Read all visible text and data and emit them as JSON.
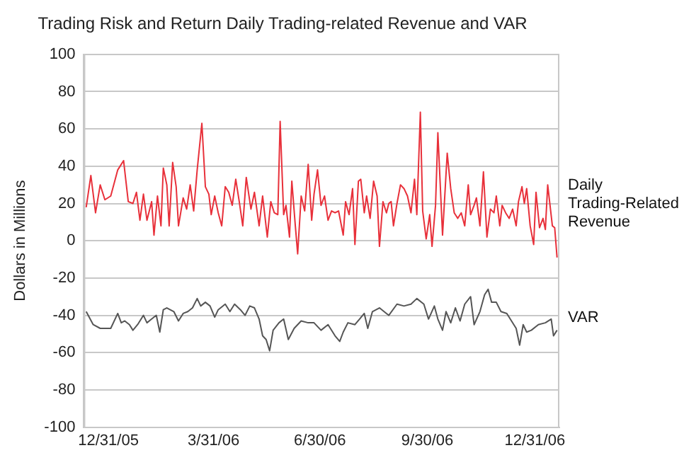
{
  "chart_data": {
    "type": "line",
    "title": "Trading Risk and Return Daily Trading-related Revenue and VAR",
    "ylabel": "Dollars in Millions",
    "xlim": [
      "2005-12-10",
      "2007-01-21"
    ],
    "xticks": [
      {
        "value": "2005-12-31",
        "label": "12/31/05"
      },
      {
        "value": "2006-03-31",
        "label": "3/31/06"
      },
      {
        "value": "2006-06-30",
        "label": "6/30/06"
      },
      {
        "value": "2006-09-30",
        "label": "9/30/06"
      },
      {
        "value": "2006-12-31",
        "label": "12/31/06"
      }
    ],
    "ylim": [
      -100,
      100
    ],
    "yticks": [
      -100,
      -80,
      -60,
      -40,
      -20,
      0,
      20,
      40,
      60,
      80,
      100
    ],
    "grid": "y",
    "legend": false,
    "marker": "none",
    "line_style": "solid",
    "series": [
      {
        "name": "Daily Trading-Related Revenue",
        "color": "#e8303a",
        "x": [
          "2005-12-12",
          "2005-12-16",
          "2005-12-20",
          "2005-12-24",
          "2005-12-28",
          "2006-01-02",
          "2006-01-08",
          "2006-01-13",
          "2006-01-17",
          "2006-01-21",
          "2006-01-24",
          "2006-01-27",
          "2006-01-30",
          "2006-02-02",
          "2006-02-06",
          "2006-02-08",
          "2006-02-11",
          "2006-02-14",
          "2006-02-16",
          "2006-02-19",
          "2006-02-21",
          "2006-02-24",
          "2006-02-27",
          "2006-03-01",
          "2006-03-05",
          "2006-03-08",
          "2006-03-11",
          "2006-03-14",
          "2006-03-17",
          "2006-03-21",
          "2006-03-24",
          "2006-03-27",
          "2006-03-29",
          "2006-04-01",
          "2006-04-04",
          "2006-04-07",
          "2006-04-10",
          "2006-04-13",
          "2006-04-16",
          "2006-04-19",
          "2006-04-22",
          "2006-04-25",
          "2006-04-28",
          "2006-05-02",
          "2006-05-05",
          "2006-05-09",
          "2006-05-12",
          "2006-05-16",
          "2006-05-19",
          "2006-05-22",
          "2006-05-25",
          "2006-05-27",
          "2006-05-30",
          "2006-06-01",
          "2006-06-04",
          "2006-06-06",
          "2006-06-09",
          "2006-06-11",
          "2006-06-14",
          "2006-06-17",
          "2006-06-20",
          "2006-06-23",
          "2006-06-25",
          "2006-06-28",
          "2006-07-01",
          "2006-07-04",
          "2006-07-07",
          "2006-07-10",
          "2006-07-13",
          "2006-07-16",
          "2006-07-20",
          "2006-07-22",
          "2006-07-25",
          "2006-07-28",
          "2006-07-30",
          "2006-08-02",
          "2006-08-04",
          "2006-08-07",
          "2006-08-09",
          "2006-08-12",
          "2006-08-15",
          "2006-08-18",
          "2006-08-20",
          "2006-08-23",
          "2006-08-26",
          "2006-08-28",
          "2006-08-30",
          "2006-09-01",
          "2006-09-04",
          "2006-09-07",
          "2006-09-10",
          "2006-09-13",
          "2006-09-16",
          "2006-09-19",
          "2006-09-21",
          "2006-09-24",
          "2006-09-26",
          "2006-09-29",
          "2006-10-02",
          "2006-10-04",
          "2006-10-07",
          "2006-10-09",
          "2006-10-13",
          "2006-10-14",
          "2006-10-17",
          "2006-10-20",
          "2006-10-23",
          "2006-10-26",
          "2006-10-29",
          "2006-11-01",
          "2006-11-04",
          "2006-11-06",
          "2006-11-09",
          "2006-11-11",
          "2006-11-14",
          "2006-11-17",
          "2006-11-20",
          "2006-11-23",
          "2006-11-26",
          "2006-11-28",
          "2006-12-01",
          "2006-12-03",
          "2006-12-06",
          "2006-12-09",
          "2006-12-12",
          "2006-12-15",
          "2006-12-17",
          "2006-12-20",
          "2006-12-22",
          "2006-12-24",
          "2006-12-27",
          "2006-12-30",
          "2007-01-01",
          "2007-01-04",
          "2007-01-07",
          "2007-01-09",
          "2007-01-11",
          "2007-01-13",
          "2007-01-15",
          "2007-01-17",
          "2007-01-19"
        ],
        "values": [
          18,
          35,
          15,
          30,
          22,
          24,
          38,
          43,
          21,
          20,
          26,
          11,
          25,
          11,
          21,
          3,
          24,
          8,
          39,
          30,
          8,
          42,
          29,
          8,
          23,
          17,
          30,
          16,
          38,
          63,
          29,
          25,
          14,
          24,
          15,
          8,
          29,
          26,
          19,
          33,
          21,
          8,
          34,
          17,
          26,
          8,
          24,
          2,
          21,
          15,
          14,
          64,
          14,
          19,
          2,
          32,
          8,
          -7,
          24,
          16,
          41,
          11,
          25,
          38,
          19,
          24,
          11,
          16,
          15,
          16,
          3,
          21,
          14,
          28,
          -2,
          32,
          33,
          15,
          24,
          12,
          32,
          24,
          -3,
          21,
          15,
          20,
          21,
          8,
          20,
          30,
          28,
          24,
          15,
          33,
          14,
          69,
          16,
          1,
          14,
          -3,
          19,
          58,
          3,
          14,
          47,
          28,
          15,
          12,
          15,
          8,
          30,
          14,
          19,
          23,
          8,
          37,
          2,
          17,
          15,
          24,
          8,
          19,
          15,
          12,
          17,
          8,
          21,
          29,
          20,
          28,
          8,
          -2,
          26,
          7,
          12,
          6,
          30,
          19,
          8,
          7,
          -9
        ]
      },
      {
        "name": "VAR",
        "color": "#555555",
        "x": [
          "2005-12-12",
          "2005-12-18",
          "2005-12-24",
          "2006-01-02",
          "2006-01-08",
          "2006-01-11",
          "2006-01-14",
          "2006-01-18",
          "2006-01-21",
          "2006-01-25",
          "2006-01-30",
          "2006-02-02",
          "2006-02-06",
          "2006-02-10",
          "2006-02-13",
          "2006-02-16",
          "2006-02-19",
          "2006-02-25",
          "2006-03-01",
          "2006-03-05",
          "2006-03-09",
          "2006-03-13",
          "2006-03-17",
          "2006-03-20",
          "2006-03-24",
          "2006-03-28",
          "2006-04-01",
          "2006-04-04",
          "2006-04-10",
          "2006-04-14",
          "2006-04-18",
          "2006-04-23",
          "2006-04-27",
          "2006-05-01",
          "2006-05-05",
          "2006-05-09",
          "2006-05-12",
          "2006-05-15",
          "2006-05-18",
          "2006-05-21",
          "2006-05-26",
          "2006-05-30",
          "2006-06-03",
          "2006-06-08",
          "2006-06-14",
          "2006-06-20",
          "2006-06-25",
          "2006-07-01",
          "2006-07-07",
          "2006-07-13",
          "2006-07-17",
          "2006-07-20",
          "2006-07-24",
          "2006-07-30",
          "2006-08-03",
          "2006-08-07",
          "2006-08-10",
          "2006-08-14",
          "2006-08-20",
          "2006-08-26",
          "2006-08-28",
          "2006-09-04",
          "2006-09-10",
          "2006-09-16",
          "2006-09-21",
          "2006-09-27",
          "2006-10-01",
          "2006-10-06",
          "2006-10-09",
          "2006-10-13",
          "2006-10-16",
          "2006-10-20",
          "2006-10-24",
          "2006-10-28",
          "2006-11-01",
          "2006-11-06",
          "2006-11-09",
          "2006-11-14",
          "2006-11-18",
          "2006-11-21",
          "2006-11-24",
          "2006-11-28",
          "2006-12-02",
          "2006-12-07",
          "2006-12-11",
          "2006-12-15",
          "2006-12-18",
          "2006-12-21",
          "2006-12-24",
          "2006-12-28",
          "2007-01-03",
          "2007-01-09",
          "2007-01-14",
          "2007-01-16",
          "2007-01-19"
        ],
        "values": [
          -38,
          -45,
          -47,
          -47,
          -39,
          -44,
          -43,
          -45,
          -48,
          -45,
          -40,
          -44,
          -42,
          -40,
          -49,
          -37,
          -36,
          -38,
          -43,
          -39,
          -38,
          -36,
          -31,
          -35,
          -33,
          -35,
          -41,
          -37,
          -34,
          -38,
          -34,
          -37,
          -40,
          -35,
          -36,
          -42,
          -51,
          -53,
          -59,
          -48,
          -44,
          -42,
          -53,
          -47,
          -43,
          -44,
          -44,
          -48,
          -45,
          -51,
          -54,
          -49,
          -44,
          -45,
          -42,
          -39,
          -47,
          -38,
          -36,
          -39,
          -40,
          -34,
          -35,
          -34,
          -31,
          -34,
          -42,
          -35,
          -42,
          -48,
          -38,
          -44,
          -36,
          -43,
          -34,
          -30,
          -45,
          -38,
          -29,
          -26,
          -33,
          -33,
          -38,
          -39,
          -43,
          -47,
          -56,
          -45,
          -49,
          -48,
          -45,
          -44,
          -42,
          -51,
          -48
        ]
      }
    ]
  }
}
